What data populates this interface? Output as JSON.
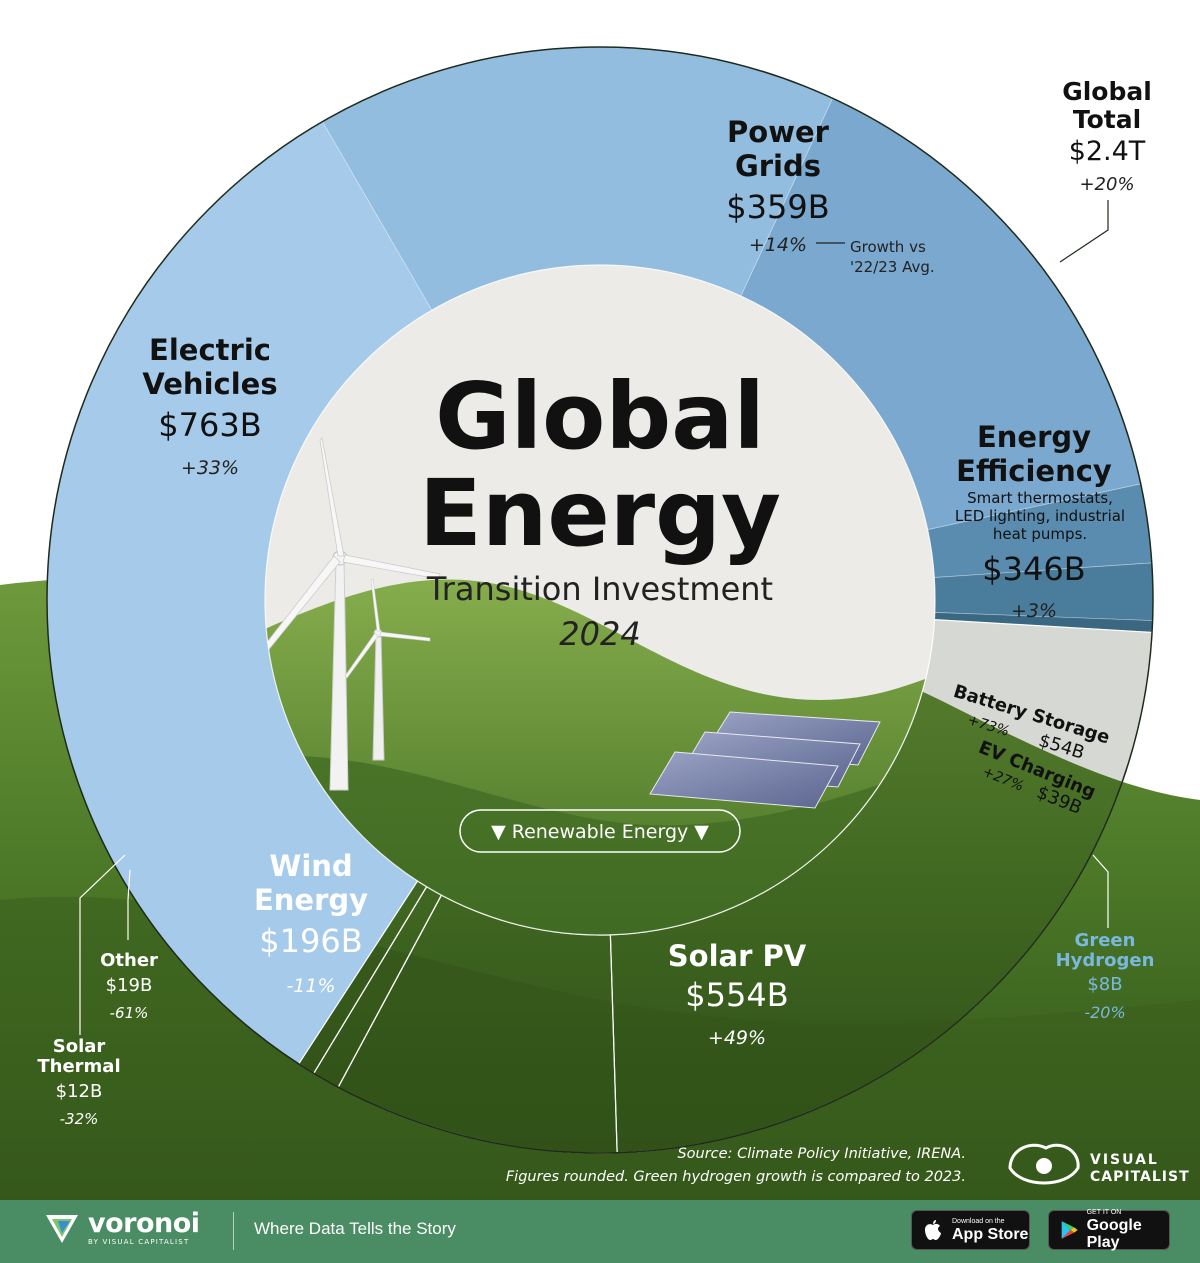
{
  "title": {
    "line1": "Global",
    "line2": "Energy",
    "subtitle": "Transition Investment",
    "year": "2024"
  },
  "renewable_badge": "▼ Renewable Energy ▼",
  "global_total": {
    "label_line1": "Global",
    "label_line2": "Total",
    "value": "$2.4T",
    "growth": "+20%"
  },
  "growth_note": {
    "line1": "Growth vs",
    "line2": "'22/23 Avg."
  },
  "chart_data": {
    "type": "pie",
    "unit": "B",
    "total": "$2.4T",
    "total_growth": "+20%",
    "segments": [
      {
        "name": "Electric Vehicles",
        "label_lines": [
          "Electric",
          "Vehicles"
        ],
        "value": 763,
        "value_label": "$763B",
        "growth": "+33%",
        "renewable": false
      },
      {
        "name": "Power Grids",
        "label_lines": [
          "Power",
          "Grids"
        ],
        "value": 359,
        "value_label": "$359B",
        "growth": "+14%",
        "renewable": false
      },
      {
        "name": "Energy Efficiency",
        "label_lines": [
          "Energy",
          "Efficiency"
        ],
        "note": [
          "Smart thermostats,",
          "LED lighting, industrial",
          "heat pumps."
        ],
        "value": 346,
        "value_label": "$346B",
        "growth": "+3%",
        "renewable": false
      },
      {
        "name": "Battery Storage",
        "label_lines": [
          "Battery Storage"
        ],
        "value": 54,
        "value_label": "$54B",
        "growth": "+73%",
        "renewable": false
      },
      {
        "name": "EV Charging",
        "label_lines": [
          "EV Charging"
        ],
        "value": 39,
        "value_label": "$39B",
        "growth": "+27%",
        "renewable": false
      },
      {
        "name": "Green Hydrogen",
        "label_lines": [
          "Green",
          "Hydrogen"
        ],
        "value": 8,
        "value_label": "$8B",
        "growth": "-20%",
        "renewable": false
      },
      {
        "name": "Solar PV",
        "label_lines": [
          "Solar PV"
        ],
        "value": 554,
        "value_label": "$554B",
        "growth": "+49%",
        "renewable": true
      },
      {
        "name": "Wind Energy",
        "label_lines": [
          "Wind",
          "Energy"
        ],
        "value": 196,
        "value_label": "$196B",
        "growth": "-11%",
        "renewable": true
      },
      {
        "name": "Other",
        "label_lines": [
          "Other"
        ],
        "value": 19,
        "value_label": "$19B",
        "growth": "-61%",
        "renewable": true
      },
      {
        "name": "Solar Thermal",
        "label_lines": [
          "Solar",
          "Thermal"
        ],
        "value": 12,
        "value_label": "$12B",
        "growth": "-32%",
        "renewable": true
      }
    ]
  },
  "colors": {
    "ev": "#a6cbea",
    "grids": "#93bddf",
    "efficiency": "#7aa8cf",
    "battery": "#5a8cb0",
    "ev_charging": "#4a7c9c",
    "hydrogen": "#3a6882",
    "sky": "#ffffff",
    "hill": "#4f7a2c",
    "center": "#ecebe8",
    "footer": "#4a8c63",
    "hydrogen_text": "#7ab8df"
  },
  "source": {
    "line1": "Source: Climate Policy Initiative, IRENA.",
    "line2": "Figures rounded. Green hydrogen growth is compared to 2023."
  },
  "publisher": {
    "line1": "VISUAL",
    "line2": "CAPITALIST"
  },
  "footer": {
    "brand": "voronoi",
    "brand_sub": "BY VISUAL CAPITALIST",
    "tagline": "Where Data Tells the Story",
    "app_store_small": "Download on the",
    "app_store_big": "App Store",
    "play_small": "GET IT ON",
    "play_big": "Google Play"
  }
}
